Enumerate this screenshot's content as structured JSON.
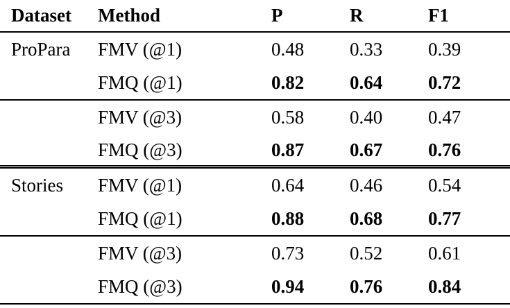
{
  "table": {
    "headers": {
      "dataset": "Dataset",
      "method": "Method",
      "p": "P",
      "r": "R",
      "f1": "F1"
    },
    "rows": [
      {
        "dataset": "ProPara",
        "method": "FMV (@1)",
        "p": "0.48",
        "r": "0.33",
        "f1": "0.39",
        "bold": false
      },
      {
        "dataset": "",
        "method": "FMQ (@1)",
        "p": "0.82",
        "r": "0.64",
        "f1": "0.72",
        "bold": true
      },
      {
        "dataset": "",
        "method": "FMV (@3)",
        "p": "0.58",
        "r": "0.40",
        "f1": "0.47",
        "bold": false
      },
      {
        "dataset": "",
        "method": "FMQ (@3)",
        "p": "0.87",
        "r": "0.67",
        "f1": "0.76",
        "bold": true
      },
      {
        "dataset": "Stories",
        "method": "FMV (@1)",
        "p": "0.64",
        "r": "0.46",
        "f1": "0.54",
        "bold": false
      },
      {
        "dataset": "",
        "method": "FMQ (@1)",
        "p": "0.88",
        "r": "0.68",
        "f1": "0.77",
        "bold": true
      },
      {
        "dataset": "",
        "method": "FMV (@3)",
        "p": "0.73",
        "r": "0.52",
        "f1": "0.61",
        "bold": false
      },
      {
        "dataset": "",
        "method": "FMQ (@3)",
        "p": "0.94",
        "r": "0.76",
        "f1": "0.84",
        "bold": true
      }
    ],
    "colors": {
      "text": "#000000",
      "background": "#ffffff",
      "rule": "#000000"
    }
  }
}
